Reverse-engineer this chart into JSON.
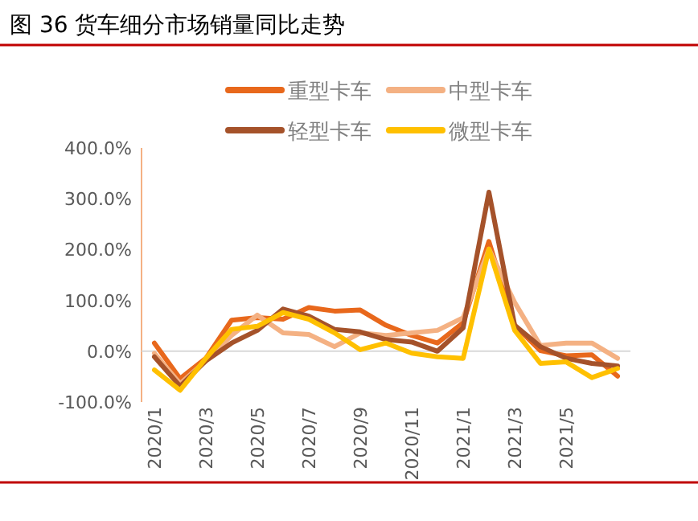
{
  "chart_data": {
    "type": "line",
    "title": "图 36 货车细分市场销量同比走势",
    "categories": [
      "2020/1",
      null,
      "2020/3",
      null,
      "2020/5",
      null,
      "2020/7",
      null,
      "2020/9",
      null,
      "2020/11",
      null,
      "2021/1",
      null,
      "2021/3",
      null,
      "2021/5",
      null,
      null
    ],
    "series": [
      {
        "name": "重型卡车",
        "color": "#e8681c",
        "values": [
          16,
          -54,
          -14,
          61,
          66,
          63,
          86,
          79,
          81,
          51,
          31,
          16,
          56,
          216,
          51,
          1,
          -9,
          -7,
          -49
        ]
      },
      {
        "name": "中型卡车",
        "color": "#f4b183",
        "values": [
          -4,
          -64,
          -19,
          31,
          71,
          36,
          33,
          9,
          36,
          31,
          36,
          41,
          66,
          201,
          96,
          11,
          16,
          16,
          -14
        ]
      },
      {
        "name": "轻型卡车",
        "color": "#a5522a",
        "values": [
          -11,
          -69,
          -19,
          16,
          41,
          83,
          69,
          43,
          38,
          23,
          18,
          0,
          46,
          313,
          51,
          9,
          -14,
          -24,
          -29
        ]
      },
      {
        "name": "微型卡车",
        "color": "#ffc000",
        "values": [
          -37,
          -77,
          -14,
          43,
          49,
          76,
          63,
          36,
          3,
          16,
          -4,
          -11,
          -14,
          201,
          41,
          -24,
          -21,
          -52,
          -34
        ]
      }
    ],
    "ylim": [
      -100,
      400
    ],
    "yticks": [
      {
        "value": -100,
        "label": "-100.0%"
      },
      {
        "value": 0,
        "label": "0.0%"
      },
      {
        "value": 100,
        "label": "100.0%"
      },
      {
        "value": 200,
        "label": "200.0%"
      },
      {
        "value": 300,
        "label": "300.0%"
      },
      {
        "value": 400,
        "label": "400.0%"
      }
    ],
    "ref_lines": [
      {
        "axis": "y",
        "value": 0,
        "color": "#d9d9d9"
      }
    ],
    "legend": "top",
    "grid": false,
    "marker": "none",
    "line_style": "solid"
  }
}
